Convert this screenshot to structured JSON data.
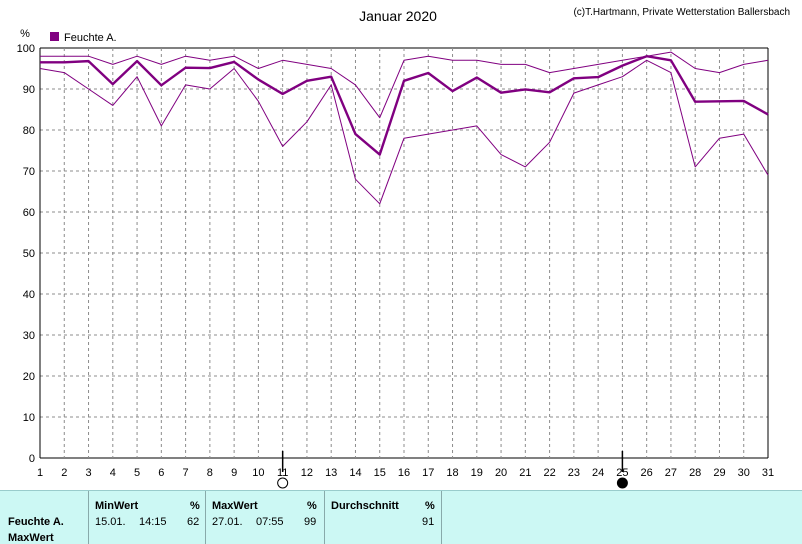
{
  "chart_data": {
    "type": "line",
    "title": "Januar 2020",
    "credit": "(c)T.Hartmann, Private Wetterstation Ballersbach",
    "ylabel": "%",
    "ylim": [
      0,
      100
    ],
    "yticks": [
      0,
      10,
      20,
      30,
      40,
      50,
      60,
      70,
      80,
      90,
      100
    ],
    "xlim": [
      1,
      31
    ],
    "x": [
      1,
      2,
      3,
      4,
      5,
      6,
      7,
      8,
      9,
      10,
      11,
      12,
      13,
      14,
      15,
      16,
      17,
      18,
      19,
      20,
      21,
      22,
      23,
      24,
      25,
      26,
      27,
      28,
      29,
      30,
      31
    ],
    "legend": "Feuchte A.",
    "legend_position": "top-left",
    "grid": true,
    "series": [
      {
        "role": "max",
        "values": [
          98,
          98,
          98,
          96,
          98,
          96,
          98,
          97,
          98,
          95,
          97,
          96,
          95,
          91,
          83,
          97,
          98,
          97,
          97,
          96,
          96,
          94,
          95,
          96,
          97,
          98,
          99,
          95,
          94,
          96,
          97
        ]
      },
      {
        "role": "mean",
        "values": [
          96.5,
          96.5,
          96.8,
          91.2,
          96.8,
          90.9,
          95.2,
          95.1,
          96.6,
          92.3,
          88.8,
          92,
          93,
          79,
          74,
          92,
          93.9,
          89.5,
          92.8,
          89.1,
          89.9,
          89.2,
          92.6,
          92.9,
          95.7,
          98,
          97,
          86.9,
          87,
          87.1,
          83.8
        ]
      },
      {
        "role": "min",
        "values": [
          95,
          94,
          90,
          86,
          93,
          81,
          91,
          90,
          95,
          87,
          76,
          82,
          91,
          68,
          62,
          78,
          79,
          80,
          81,
          74,
          71,
          77,
          89,
          91,
          93,
          97,
          94,
          71,
          78,
          79,
          69
        ]
      }
    ],
    "moon_markers": [
      {
        "day": 11,
        "phase": "full"
      },
      {
        "day": 25,
        "phase": "new"
      }
    ],
    "colors": {
      "line": "#800080",
      "grid": "#8c8c8c"
    }
  },
  "stats": {
    "row_label_1": "Feuchte A.",
    "row_label_2": "MaxWert",
    "min": {
      "header": "MinWert",
      "unit": "%",
      "date": "15.01.",
      "time": "14:15",
      "value": "62"
    },
    "max": {
      "header": "MaxWert",
      "unit": "%",
      "date": "27.01.",
      "time": "07:55",
      "value": "99"
    },
    "avg": {
      "header": "Durchschnitt",
      "unit": "%",
      "value": "91"
    }
  }
}
